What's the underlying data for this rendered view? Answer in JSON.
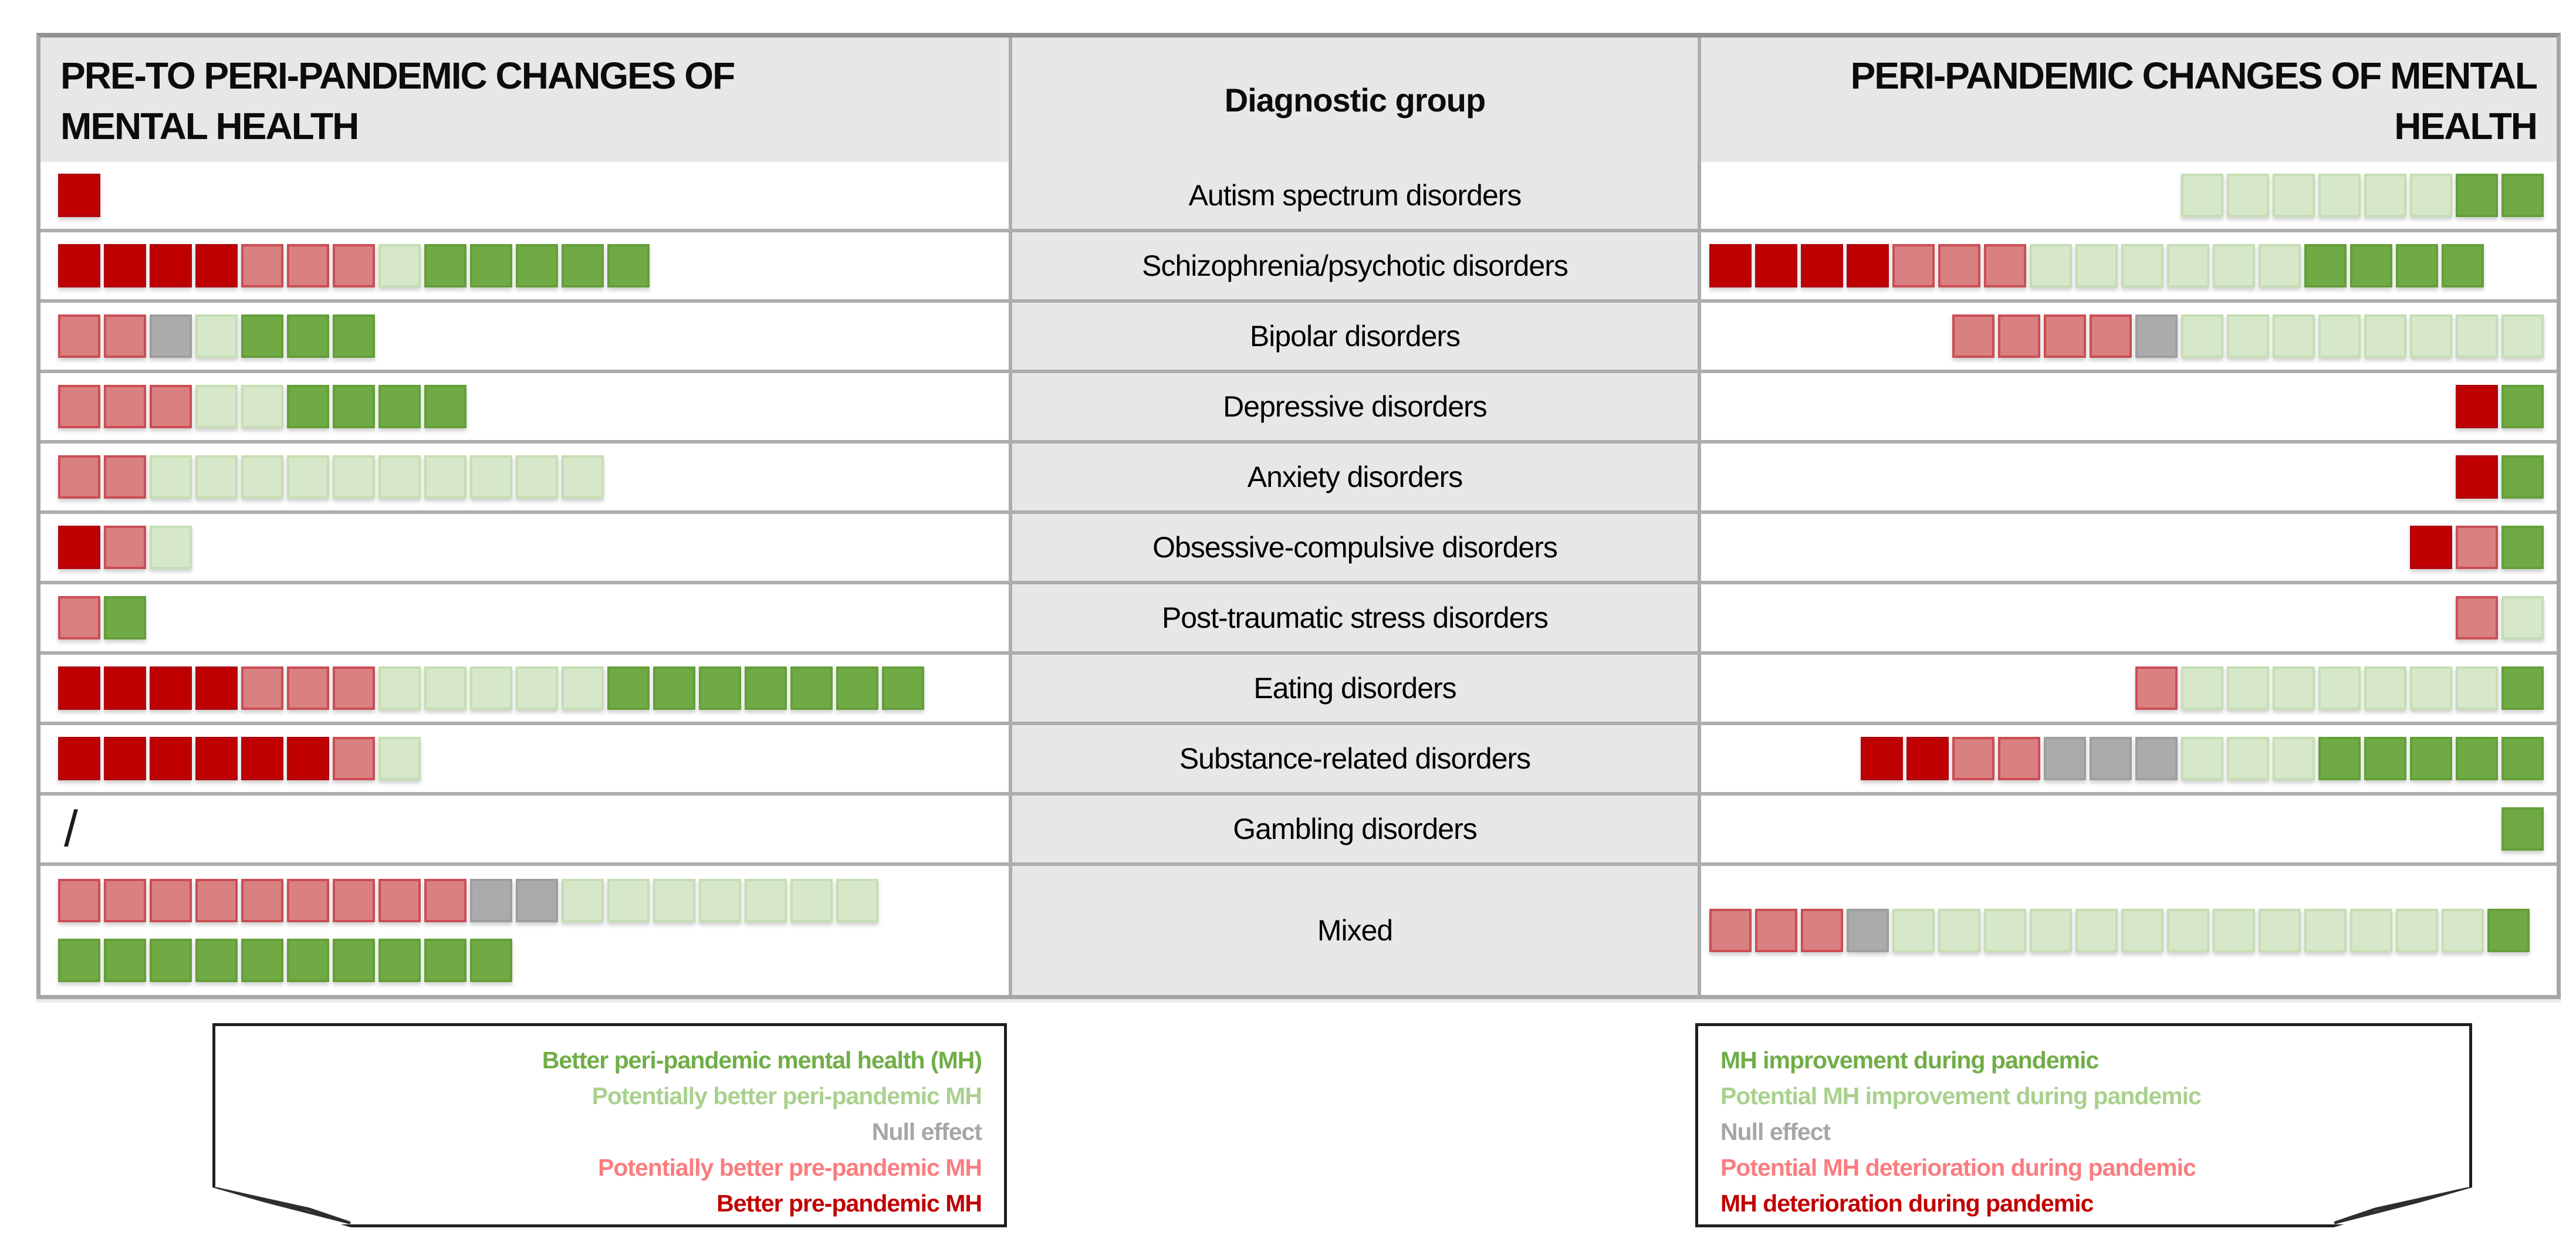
{
  "chart_data": {
    "type": "table",
    "description": "Summary figure of study-level effects: colored squares per study, by diagnostic group",
    "headers": {
      "left": "PRE-TO PERI-PANDEMIC CHANGES OF\nMENTAL HEALTH",
      "center": "Diagnostic group",
      "right": "PERI-PANDEMIC CHANGES OF MENTAL\nHEALTH"
    },
    "square_colors": {
      "red": {
        "fill": "#C00000",
        "border": "#B2060D"
      },
      "salmon": {
        "fill": "#D98082",
        "border": "#CB4E54"
      },
      "gray": {
        "fill": "#ABABAB",
        "border": "#9E9E9E"
      },
      "palegreen": {
        "fill": "#D7E8CA",
        "border": "#C6DEB3"
      },
      "green": {
        "fill": "#6FAA45",
        "border": "#649F3A"
      }
    },
    "rows": [
      {
        "label": "Autism spectrum disorders",
        "left": {
          "align": "left",
          "lines": [
            [
              [
                "red",
                1
              ]
            ]
          ]
        },
        "right": {
          "align": "right",
          "lines": [
            [
              [
                "palegreen",
                6
              ],
              [
                "green",
                2
              ]
            ]
          ]
        }
      },
      {
        "label": "Schizophrenia/psychotic disorders",
        "left": {
          "align": "left",
          "lines": [
            [
              [
                "red",
                4
              ],
              [
                "salmon",
                3
              ],
              [
                "palegreen",
                1
              ],
              [
                "green",
                5
              ]
            ]
          ]
        },
        "right": {
          "align": "left",
          "lines": [
            [
              [
                "red",
                4
              ],
              [
                "salmon",
                3
              ],
              [
                "palegreen",
                6
              ],
              [
                "green",
                4
              ]
            ]
          ]
        }
      },
      {
        "label": "Bipolar disorders",
        "left": {
          "align": "left",
          "lines": [
            [
              [
                "salmon",
                2
              ],
              [
                "gray",
                1
              ],
              [
                "palegreen",
                1
              ],
              [
                "green",
                3
              ]
            ]
          ]
        },
        "right": {
          "align": "right",
          "lines": [
            [
              [
                "salmon",
                4
              ],
              [
                "gray",
                1
              ],
              [
                "palegreen",
                8
              ]
            ]
          ]
        }
      },
      {
        "label": "Depressive disorders",
        "left": {
          "align": "left",
          "lines": [
            [
              [
                "salmon",
                3
              ],
              [
                "palegreen",
                2
              ],
              [
                "green",
                4
              ]
            ]
          ]
        },
        "right": {
          "align": "right",
          "lines": [
            [
              [
                "red",
                1
              ],
              [
                "green",
                1
              ]
            ]
          ]
        }
      },
      {
        "label": "Anxiety disorders",
        "left": {
          "align": "left",
          "lines": [
            [
              [
                "salmon",
                2
              ],
              [
                "palegreen",
                10
              ]
            ]
          ]
        },
        "right": {
          "align": "right",
          "lines": [
            [
              [
                "red",
                1
              ],
              [
                "green",
                1
              ]
            ]
          ]
        }
      },
      {
        "label": "Obsessive-compulsive disorders",
        "left": {
          "align": "left",
          "lines": [
            [
              [
                "red",
                1
              ],
              [
                "salmon",
                1
              ],
              [
                "palegreen",
                1
              ]
            ]
          ]
        },
        "right": {
          "align": "right",
          "lines": [
            [
              [
                "red",
                1
              ],
              [
                "salmon",
                1
              ],
              [
                "green",
                1
              ]
            ]
          ]
        }
      },
      {
        "label": "Post-traumatic stress disorders",
        "left": {
          "align": "left",
          "lines": [
            [
              [
                "salmon",
                1
              ],
              [
                "green",
                1
              ]
            ]
          ]
        },
        "right": {
          "align": "right",
          "lines": [
            [
              [
                "salmon",
                1
              ],
              [
                "palegreen",
                1
              ]
            ]
          ]
        }
      },
      {
        "label": "Eating disorders",
        "left": {
          "align": "left",
          "lines": [
            [
              [
                "red",
                4
              ],
              [
                "salmon",
                3
              ],
              [
                "palegreen",
                5
              ],
              [
                "green",
                7
              ]
            ]
          ]
        },
        "right": {
          "align": "right",
          "lines": [
            [
              [
                "salmon",
                1
              ],
              [
                "palegreen",
                7
              ],
              [
                "green",
                1
              ]
            ]
          ]
        }
      },
      {
        "label": "Substance-related disorders",
        "left": {
          "align": "left",
          "lines": [
            [
              [
                "red",
                6
              ],
              [
                "salmon",
                1
              ],
              [
                "palegreen",
                1
              ]
            ]
          ]
        },
        "right": {
          "align": "right",
          "lines": [
            [
              [
                "red",
                2
              ],
              [
                "salmon",
                2
              ],
              [
                "gray",
                3
              ],
              [
                "palegreen",
                3
              ],
              [
                "green",
                5
              ]
            ]
          ]
        }
      },
      {
        "label": "Gambling disorders",
        "left": {
          "align": "left",
          "text": "/"
        },
        "right": {
          "align": "right",
          "lines": [
            [
              [
                "green",
                1
              ]
            ]
          ]
        }
      },
      {
        "label": "Mixed",
        "tall": true,
        "left": {
          "align": "left",
          "lines": [
            [
              [
                "salmon",
                9
              ],
              [
                "gray",
                2
              ],
              [
                "palegreen",
                7
              ]
            ],
            [
              [
                "green",
                10
              ]
            ]
          ]
        },
        "right": {
          "align": "left",
          "lines": [
            [
              [
                "salmon",
                3
              ],
              [
                "gray",
                1
              ],
              [
                "palegreen",
                13
              ],
              [
                "green",
                1
              ]
            ]
          ]
        }
      }
    ],
    "legend_left": {
      "lines": [
        {
          "text": "Better peri-pandemic mental health (MH)",
          "color": "green"
        },
        {
          "text": "Potentially better peri-pandemic MH",
          "color": "palegreen"
        },
        {
          "text": "Null effect",
          "color": "gray"
        },
        {
          "text": "Potentially better pre-pandemic MH",
          "color": "salmon"
        },
        {
          "text": "Better pre-pandemic MH",
          "color": "red"
        }
      ]
    },
    "legend_right": {
      "lines": [
        {
          "text": "MH improvement during pandemic",
          "color": "green"
        },
        {
          "text": "Potential MH improvement during pandemic",
          "color": "palegreen"
        },
        {
          "text": "Null effect",
          "color": "gray"
        },
        {
          "text": "Potential MH deterioration during pandemic",
          "color": "salmon"
        },
        {
          "text": "MH deterioration during pandemic",
          "color": "red"
        }
      ]
    },
    "legend_text_colors": {
      "green": "#70AD47",
      "palegreen": "#A9D18E",
      "gray": "#A6A6A6",
      "salmon": "#FA7D80",
      "red": "#C00000"
    }
  }
}
